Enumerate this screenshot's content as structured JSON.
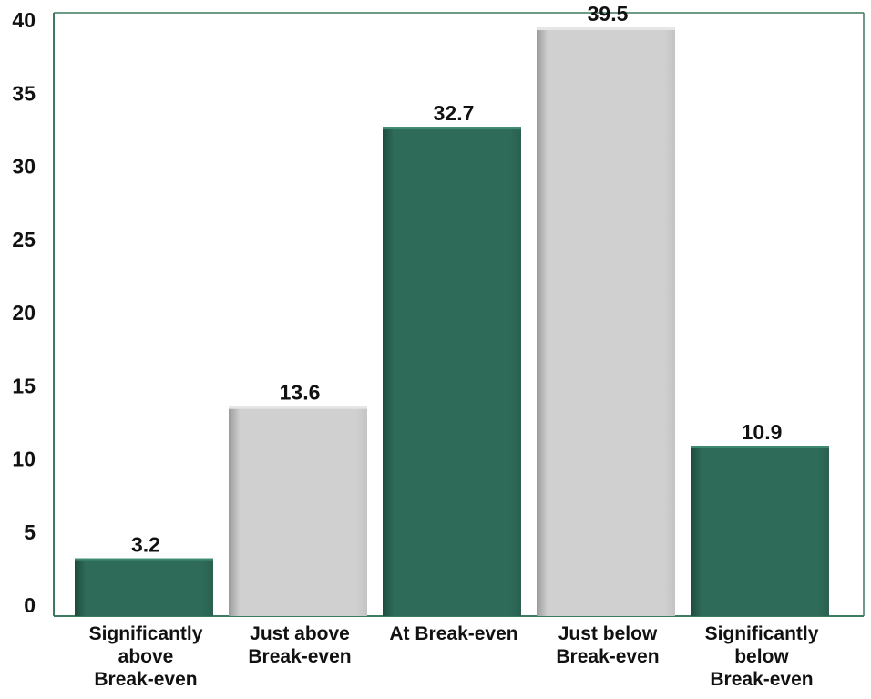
{
  "chart_data": {
    "type": "bar",
    "title": "",
    "xlabel": "",
    "ylabel": "",
    "ylim": [
      0,
      40
    ],
    "yticks": [
      0,
      5,
      10,
      15,
      20,
      25,
      30,
      35,
      40
    ],
    "grid": false,
    "legend": "none",
    "categories": [
      [
        "Significantly",
        "above",
        "Break-even"
      ],
      [
        "Just above",
        "Break-even"
      ],
      [
        "At Break-even"
      ],
      [
        "Just below",
        "Break-even"
      ],
      [
        "Significantly",
        "below",
        "Break-even"
      ]
    ],
    "values": [
      3.2,
      13.6,
      32.7,
      39.5,
      10.9
    ],
    "value_labels": [
      "3.2",
      "13.6",
      "32.7",
      "39.5",
      "10.9"
    ],
    "bar_colors": [
      "#2e6b58",
      "#cfcfcf",
      "#2e6b58",
      "#cfcfcf",
      "#2e6b58"
    ],
    "axis_color": "#3d7a5e"
  }
}
